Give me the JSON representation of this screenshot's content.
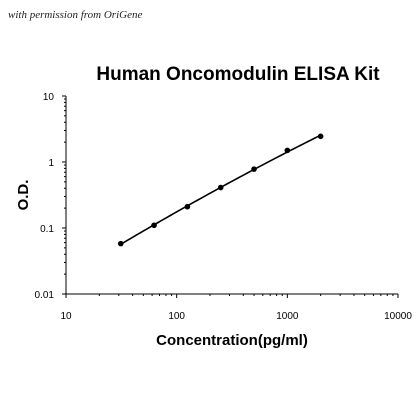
{
  "watermark": "with permission from OriGene",
  "chart_data": {
    "type": "scatter",
    "title": "Human Oncomodulin ELISA Kit",
    "xlabel": "Concentration(pg/ml)",
    "ylabel": "O.D.",
    "x_scale": "log",
    "y_scale": "log",
    "xlim": [
      10,
      10000
    ],
    "ylim": [
      0.01,
      10
    ],
    "x_ticks": [
      "10",
      "100",
      "1000",
      "10000"
    ],
    "y_ticks": [
      "0.01",
      "0.1",
      "1",
      "10"
    ],
    "grid": false,
    "legend": "none",
    "series": [
      {
        "x": [
          31.25,
          62.5,
          125,
          250,
          500,
          1000,
          2000
        ],
        "y": [
          0.058,
          0.11,
          0.21,
          0.41,
          0.78,
          1.5,
          2.45
        ],
        "fit_curve": true
      }
    ],
    "colors": {
      "points": "#000000",
      "curve": "#000000",
      "axes": "#000000"
    }
  }
}
